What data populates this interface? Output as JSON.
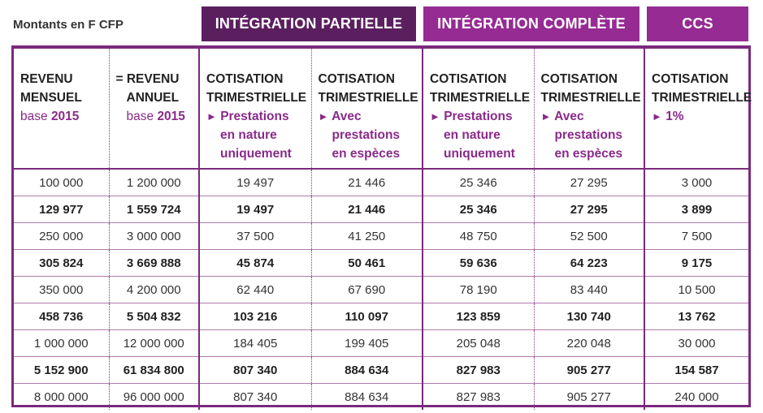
{
  "units_label": "Montants en F CFP",
  "groups": {
    "partielle": "INTÉGRATION PARTIELLE",
    "complete": "INTÉGRATION COMPLÈTE",
    "ccs": "CCS"
  },
  "headers": {
    "revenu_mensuel": {
      "line1": "REVENU",
      "line2": "MENSUEL",
      "base_word": "base",
      "base_year": "2015"
    },
    "revenu_annuel": {
      "line1": "= REVENU",
      "line2": "ANNUEL",
      "base_word": "base",
      "base_year": "2015"
    },
    "cotisation_line1": "COTISATION",
    "cotisation_line2": "TRIMESTRIELLE",
    "arrow": "►",
    "nature_l1": "Prestations",
    "nature_l2": "en nature",
    "nature_l3": "uniquement",
    "especes_l1": "Avec",
    "especes_l2": "prestations",
    "especes_l3": "en espèces",
    "ccs_rate": "1%"
  },
  "rows": [
    {
      "bold": false,
      "cells": [
        "100 000",
        "1 200 000",
        "19 497",
        "21 446",
        "25 346",
        "27 295",
        "3 000"
      ]
    },
    {
      "bold": true,
      "cells": [
        "129 977",
        "1 559 724",
        "19 497",
        "21 446",
        "25 346",
        "27 295",
        "3 899"
      ]
    },
    {
      "bold": false,
      "cells": [
        "250 000",
        "3 000 000",
        "37 500",
        "41 250",
        "48 750",
        "52 500",
        "7 500"
      ]
    },
    {
      "bold": true,
      "cells": [
        "305 824",
        "3 669 888",
        "45 874",
        "50 461",
        "59 636",
        "64 223",
        "9 175"
      ]
    },
    {
      "bold": false,
      "cells": [
        "350 000",
        "4 200 000",
        "62 440",
        "67 690",
        "78 190",
        "83 440",
        "10 500"
      ]
    },
    {
      "bold": true,
      "cells": [
        "458 736",
        "5 504 832",
        "103 216",
        "110 097",
        "123 859",
        "130 740",
        "13 762"
      ]
    },
    {
      "bold": false,
      "cells": [
        "1 000 000",
        "12 000 000",
        "184 405",
        "199 405",
        "205 048",
        "220 048",
        "30 000"
      ]
    },
    {
      "bold": true,
      "cells": [
        "5 152 900",
        "61 834 800",
        "807 340",
        "884 634",
        "827 983",
        "905 277",
        "154 587"
      ]
    },
    {
      "bold": false,
      "cells": [
        "8 000 000",
        "96 000 000",
        "807 340",
        "884 634",
        "827 983",
        "905 277",
        "240 000"
      ]
    }
  ],
  "colors": {
    "dark_purple": "#5b1f60",
    "purple": "#952b93",
    "accent_text": "#8a2a8a"
  }
}
